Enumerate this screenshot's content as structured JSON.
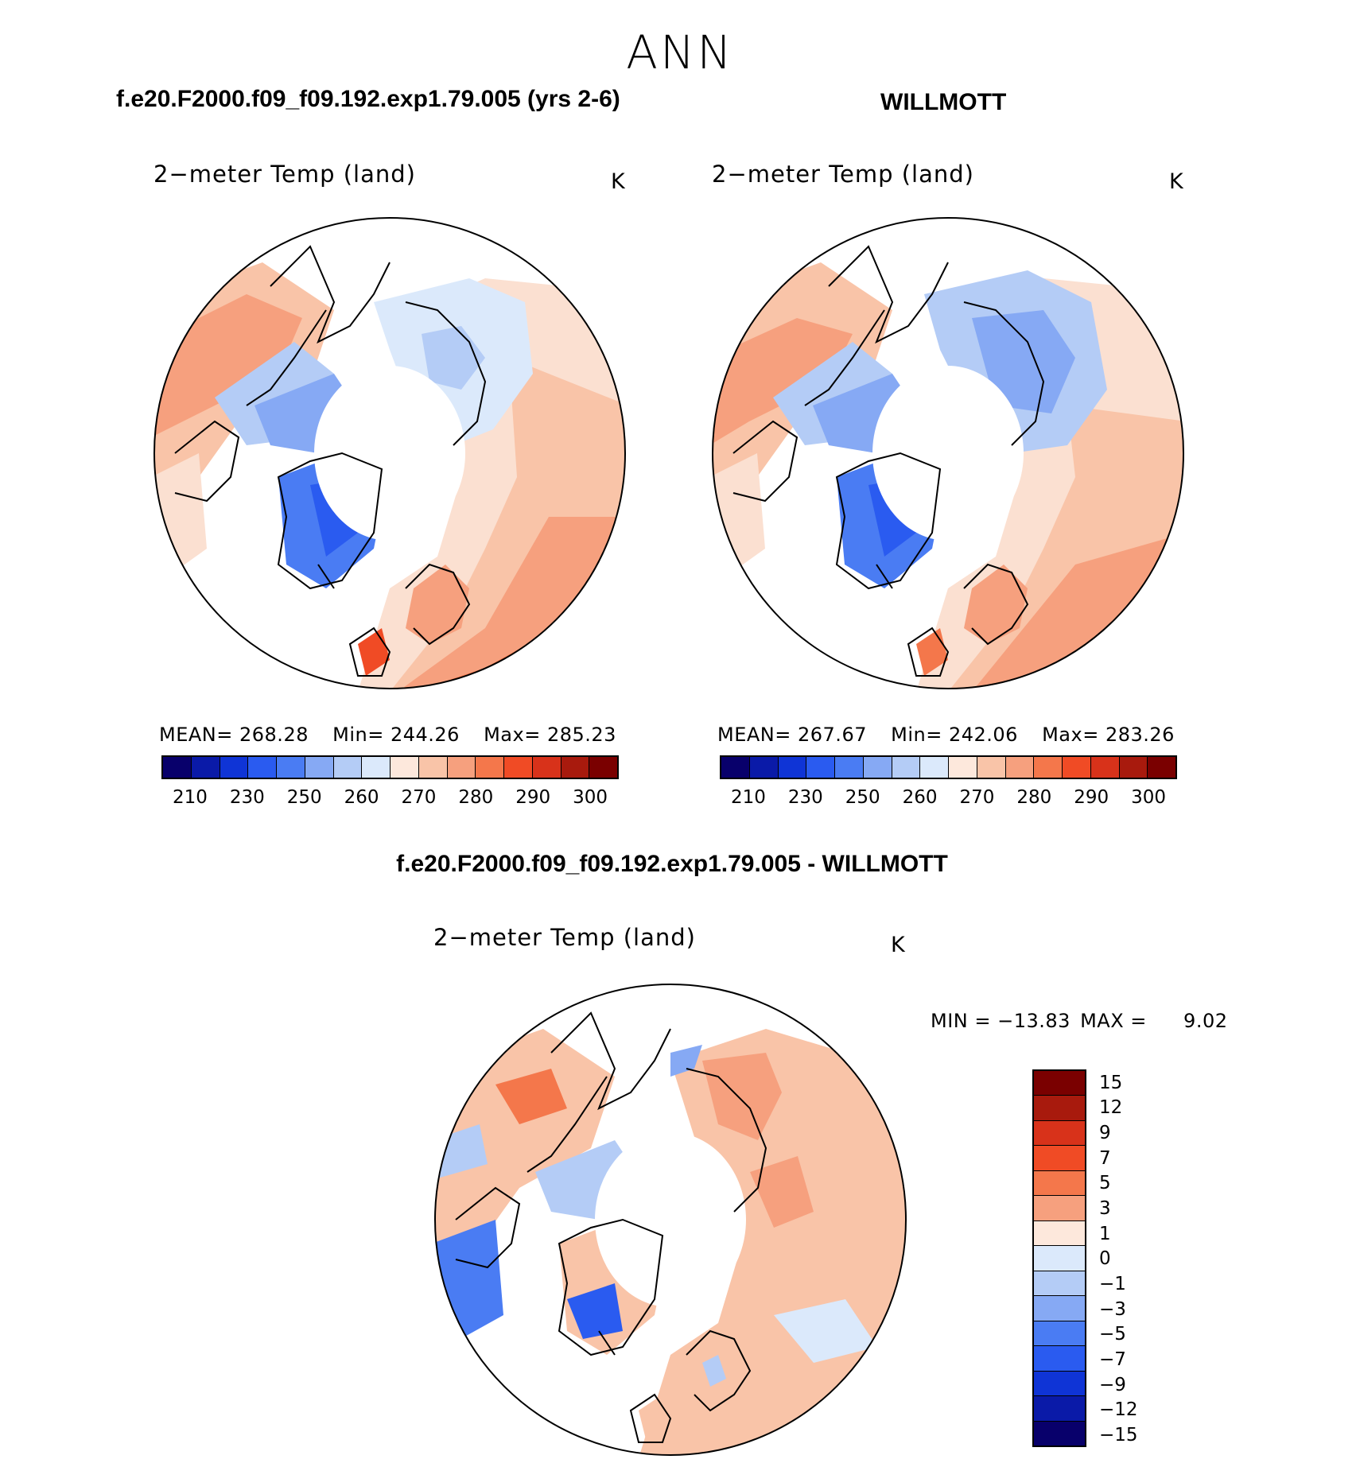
{
  "figure": {
    "title": "ANN",
    "case_title": "f.e20.F2000.f09_f09.192.exp1.79.005 (yrs 2-6)",
    "obs_title": "WILLMOTT",
    "diff_title": "f.e20.F2000.f09_f09.192.exp1.79.005 - WILLMOTT"
  },
  "colors": {
    "abs_palette": [
      "#08006b",
      "#0a1aa8",
      "#0f34d6",
      "#2a5bf0",
      "#4a7cf3",
      "#86a9f4",
      "#b4ccf6",
      "#dbe9fb",
      "#fde8dc",
      "#f9c4a8",
      "#f6a07e",
      "#f4774b",
      "#f04b25",
      "#d8321a",
      "#a81a0d",
      "#7a0000"
    ],
    "diff_palette": [
      "#7a0000",
      "#a81a0d",
      "#d8321a",
      "#f04b25",
      "#f4774b",
      "#f6a07e",
      "#fde8dc",
      "#dbe9fb",
      "#b4ccf6",
      "#86a9f4",
      "#4a7cf3",
      "#2a5bf0",
      "#0f34d6",
      "#0a1aa8",
      "#08006b"
    ]
  },
  "panels": [
    {
      "label": "2−meter Temp (land)",
      "unit": "K",
      "mean_label": "MEAN=",
      "mean": "268.28",
      "min_label": "Min=",
      "min": "244.26",
      "max_label": "Max=",
      "max": "285.23"
    },
    {
      "label": "2−meter Temp (land)",
      "unit": "K",
      "mean_label": "MEAN=",
      "mean": "267.67",
      "min_label": "Min=",
      "min": "242.06",
      "max_label": "Max=",
      "max": "283.26"
    },
    {
      "label": "2−meter Temp (land)",
      "unit": "K",
      "min_label": "MIN =",
      "min": "−13.83",
      "max_label": "MAX =",
      "max": "9.02"
    }
  ],
  "colorbar_abs": {
    "ticks": [
      "210",
      "230",
      "250",
      "260",
      "270",
      "280",
      "290",
      "300"
    ]
  },
  "colorbar_diff": {
    "ticks": [
      "15",
      "12",
      "9",
      "7",
      "5",
      "3",
      "1",
      "0",
      "−1",
      "−3",
      "−5",
      "−7",
      "−9",
      "−12",
      "−15"
    ]
  },
  "chart_data": [
    {
      "type": "heatmap",
      "title": "2−meter Temp (land)",
      "units": "K",
      "projection": "north polar stereographic",
      "case": "f.e20.F2000.f09_f09.192.exp1.79.005 (yrs 2-6)",
      "mean": 268.28,
      "min": 244.26,
      "max": 285.23,
      "contour_levels": [
        210,
        220,
        230,
        240,
        250,
        255,
        260,
        265,
        270,
        275,
        280,
        285,
        290,
        295,
        300
      ]
    },
    {
      "type": "heatmap",
      "title": "2−meter Temp (land)",
      "units": "K",
      "projection": "north polar stereographic",
      "case": "WILLMOTT",
      "mean": 267.67,
      "min": 242.06,
      "max": 283.26,
      "contour_levels": [
        210,
        220,
        230,
        240,
        250,
        255,
        260,
        265,
        270,
        275,
        280,
        285,
        290,
        295,
        300
      ]
    },
    {
      "type": "heatmap",
      "title": "2−meter Temp (land)",
      "units": "K",
      "projection": "north polar stereographic",
      "case": "f.e20.F2000.f09_f09.192.exp1.79.005 - WILLMOTT",
      "min": -13.83,
      "max": 9.02,
      "contour_levels": [
        -15,
        -12,
        -9,
        -7,
        -5,
        -3,
        -1,
        0,
        1,
        3,
        5,
        7,
        9,
        12,
        15
      ]
    }
  ]
}
